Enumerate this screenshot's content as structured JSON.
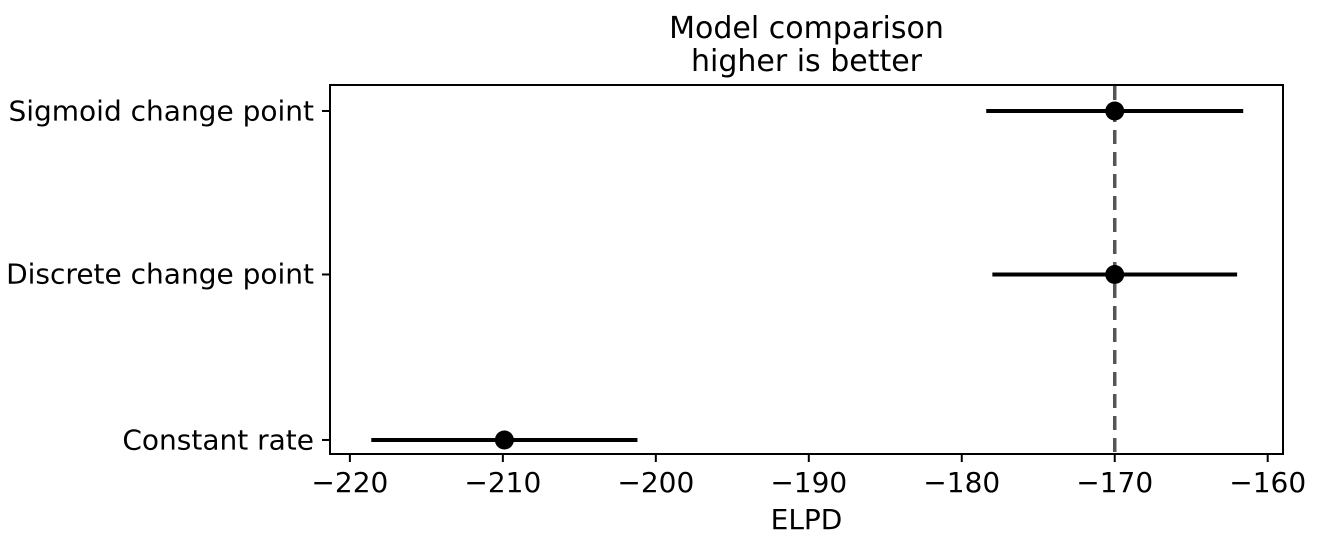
{
  "chart_data": {
    "type": "scatter",
    "subtype": "horizontal-errorbar-dotplot",
    "title": "Model comparison\nhigher is better",
    "title_lines": [
      "Model comparison",
      "higher is better"
    ],
    "xlabel": "ELPD",
    "ylabel": "",
    "categories": [
      "Sigmoid change point",
      "Discrete change point",
      "Constant rate"
    ],
    "series": [
      {
        "name": "Sigmoid change point",
        "elpd": -170.0,
        "ci_lower": -178.4,
        "ci_upper": -161.6
      },
      {
        "name": "Discrete change point",
        "elpd": -170.0,
        "ci_lower": -178.0,
        "ci_upper": -162.0
      },
      {
        "name": "Constant rate",
        "elpd": -209.9,
        "ci_lower": -218.6,
        "ci_upper": -201.2
      }
    ],
    "reference_line_x": -170.0,
    "xlim": [
      -221.3,
      -159.0
    ],
    "xticks": [
      -220,
      -210,
      -200,
      -190,
      -180,
      -170,
      -160
    ],
    "xtick_labels": [
      "−220",
      "−210",
      "−200",
      "−190",
      "−180",
      "−170",
      "−160"
    ],
    "row_fractions": [
      0.0704,
      0.5135,
      0.962
    ],
    "grid": false,
    "legend": false,
    "colors": {
      "marker": "#000000",
      "errorbar": "#000000",
      "reference_line": "#555555",
      "frame": "#000000",
      "background": "#ffffff",
      "text": "#000000"
    }
  }
}
